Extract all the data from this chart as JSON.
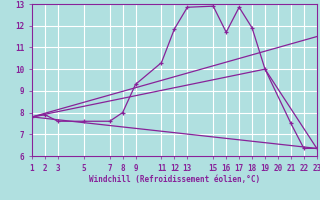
{
  "background_color": "#b0e0e0",
  "grid_color": "#ffffff",
  "line_color": "#882299",
  "xlabel": "Windchill (Refroidissement éolien,°C)",
  "xlim": [
    1,
    23
  ],
  "ylim": [
    6,
    13
  ],
  "yticks": [
    6,
    7,
    8,
    9,
    10,
    11,
    12,
    13
  ],
  "xticks": [
    1,
    2,
    3,
    5,
    7,
    8,
    9,
    11,
    12,
    13,
    15,
    16,
    17,
    18,
    19,
    20,
    21,
    22,
    23
  ],
  "line1_x": [
    1,
    2,
    3,
    5,
    7,
    8,
    9,
    11,
    12,
    13,
    15,
    16,
    17,
    18,
    19,
    21,
    22,
    23
  ],
  "line1_y": [
    7.8,
    7.9,
    7.6,
    7.6,
    7.6,
    8.0,
    9.3,
    10.3,
    11.85,
    12.85,
    12.9,
    11.7,
    12.85,
    11.9,
    10.0,
    7.5,
    6.35,
    6.35
  ],
  "line2_x": [
    1,
    23
  ],
  "line2_y": [
    7.8,
    11.5
  ],
  "line3_x": [
    1,
    23
  ],
  "line3_y": [
    7.8,
    6.35
  ],
  "line4_x": [
    1,
    19,
    23
  ],
  "line4_y": [
    7.8,
    10.0,
    6.35
  ]
}
